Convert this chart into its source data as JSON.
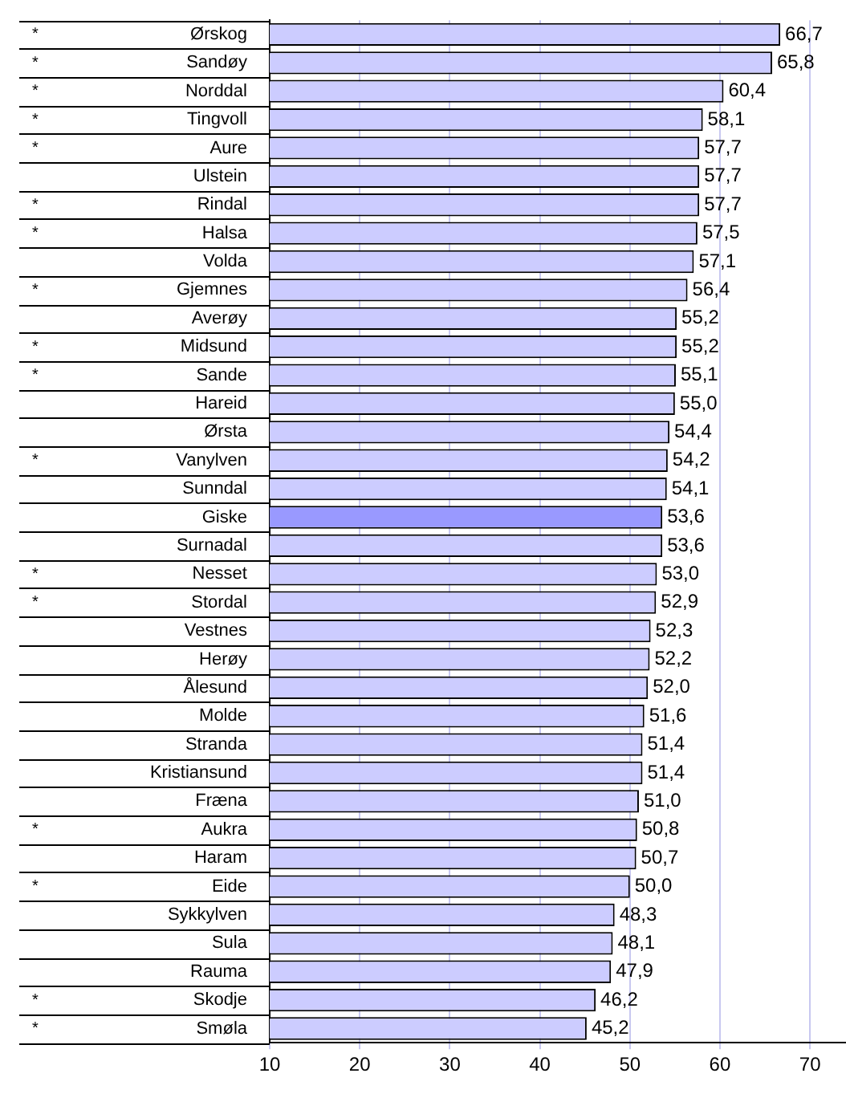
{
  "chart_data": {
    "type": "bar",
    "orientation": "horizontal",
    "categories": [
      "Ørskog",
      "Sandøy",
      "Norddal",
      "Tingvoll",
      "Aure",
      "Ulstein",
      "Rindal",
      "Halsa",
      "Volda",
      "Gjemnes",
      "Averøy",
      "Midsund",
      "Sande",
      "Hareid",
      "Ørsta",
      "Vanylven",
      "Sunndal",
      "Giske",
      "Surnadal",
      "Nesset",
      "Stordal",
      "Vestnes",
      "Herøy",
      "Ålesund",
      "Molde",
      "Stranda",
      "Kristiansund",
      "Fræna",
      "Aukra",
      "Haram",
      "Eide",
      "Sykkylven",
      "Sula",
      "Rauma",
      "Skodje",
      "Smøla"
    ],
    "values": [
      66.7,
      65.8,
      60.4,
      58.1,
      57.7,
      57.7,
      57.7,
      57.5,
      57.1,
      56.4,
      55.2,
      55.2,
      55.1,
      55.0,
      54.4,
      54.2,
      54.1,
      53.6,
      53.6,
      53.0,
      52.9,
      52.3,
      52.2,
      52.0,
      51.6,
      51.4,
      51.4,
      51.0,
      50.8,
      50.7,
      50.0,
      48.3,
      48.1,
      47.9,
      46.2,
      45.2
    ],
    "value_labels": [
      "66,7",
      "65,8",
      "60,4",
      "58,1",
      "57,7",
      "57,7",
      "57,7",
      "57,5",
      "57,1",
      "56,4",
      "55,2",
      "55,2",
      "55,1",
      "55,0",
      "54,4",
      "54,2",
      "54,1",
      "53,6",
      "53,6",
      "53,0",
      "52,9",
      "52,3",
      "52,2",
      "52,0",
      "51,6",
      "51,4",
      "51,4",
      "51,0",
      "50,8",
      "50,7",
      "50,0",
      "48,3",
      "48,1",
      "47,9",
      "46,2",
      "45,2"
    ],
    "colors": [
      "#ccccff",
      "#ccccff",
      "#ccccff",
      "#ccccff",
      "#ccccff",
      "#ccccff",
      "#ccccff",
      "#ccccff",
      "#ccccff",
      "#ccccff",
      "#ccccff",
      "#ccccff",
      "#ccccff",
      "#ccccff",
      "#ccccff",
      "#ccccff",
      "#ccccff",
      "#9999ff",
      "#ccccff",
      "#ccccff",
      "#ccccff",
      "#ccccff",
      "#ccccff",
      "#ccccff",
      "#ccccff",
      "#ccccff",
      "#ccccff",
      "#ccccff",
      "#ccccff",
      "#ccccff",
      "#ccccff",
      "#ccccff",
      "#ccccff",
      "#ccccff",
      "#ccccff",
      "#ccccff"
    ],
    "xlim": [
      10,
      74
    ],
    "xticks": [
      10,
      20,
      30,
      40,
      50,
      60,
      70
    ],
    "grid": "x",
    "legend": false,
    "annotations": [
      "*",
      "*",
      "*",
      "*",
      "*",
      null,
      "*",
      "*",
      null,
      "*",
      null,
      "*",
      "*",
      null,
      null,
      "*",
      null,
      null,
      null,
      "*",
      "*",
      null,
      null,
      null,
      null,
      null,
      null,
      null,
      "*",
      null,
      "*",
      null,
      null,
      null,
      "*",
      "*"
    ]
  }
}
